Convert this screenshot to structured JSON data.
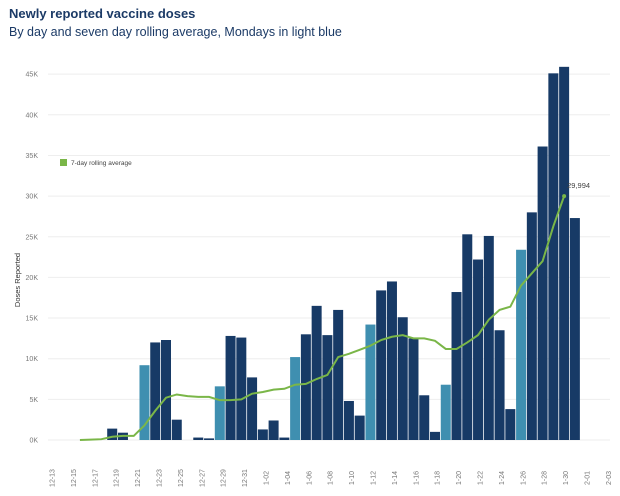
{
  "title": "Newly reported vaccine doses",
  "subtitle": "By day and seven day rolling average, Mondays in light blue",
  "chart_data": {
    "type": "bar",
    "ylabel": "Doses Reported",
    "ylim": [
      0,
      47000
    ],
    "yticks": [
      0,
      5000,
      10000,
      15000,
      20000,
      25000,
      30000,
      35000,
      40000,
      45000
    ],
    "ytick_labels": [
      "0K",
      "5K",
      "10K",
      "15K",
      "20K",
      "25K",
      "30K",
      "35K",
      "40K",
      "45K"
    ],
    "xtick_labels": [
      "12-13",
      "12-15",
      "12-17",
      "12-19",
      "12-21",
      "12-23",
      "12-25",
      "12-27",
      "12-29",
      "12-31",
      "1-02",
      "1-04",
      "1-06",
      "1-08",
      "1-10",
      "1-12",
      "1-14",
      "1-16",
      "1-18",
      "1-20",
      "1-22",
      "1-24",
      "1-26",
      "1-28",
      "1-30",
      "2-01",
      "2-03"
    ],
    "grid": true,
    "legend": {
      "label": "7-day rolling average",
      "placement": "top-left"
    },
    "colors": {
      "weekday": "#173a66",
      "monday": "#3f8fb0",
      "rolling_average": "#7ab648"
    },
    "categories": [
      "12-13",
      "12-14",
      "12-15",
      "12-16",
      "12-17",
      "12-18",
      "12-19",
      "12-20",
      "12-21",
      "12-22",
      "12-23",
      "12-24",
      "12-25",
      "12-26",
      "12-27",
      "12-28",
      "12-29",
      "12-30",
      "12-31",
      "1-01",
      "1-02",
      "1-03",
      "1-04",
      "1-05",
      "1-06",
      "1-07",
      "1-08",
      "1-09",
      "1-10",
      "1-11",
      "1-12",
      "1-13",
      "1-14",
      "1-15",
      "1-16",
      "1-17",
      "1-18",
      "1-19",
      "1-20",
      "1-21",
      "1-22",
      "1-23",
      "1-24",
      "1-25",
      "1-26",
      "1-27",
      "1-28",
      "1-29",
      "1-30",
      "1-31",
      "2-01",
      "2-02",
      "2-03"
    ],
    "series": [
      {
        "type": "bar",
        "values": [
          0,
          0,
          0,
          0,
          0,
          1400,
          900,
          0,
          9200,
          12000,
          12300,
          2500,
          0,
          300,
          200,
          6600,
          12800,
          12600,
          7700,
          1300,
          2400,
          300,
          10200,
          13000,
          16500,
          12900,
          16000,
          4800,
          3000,
          14200,
          18400,
          19500,
          15100,
          12500,
          5500,
          1000,
          6800,
          18200,
          25300,
          22200,
          25100,
          13500,
          3800,
          23400,
          28000,
          36100,
          45100,
          45900,
          27300,
          null,
          null,
          null,
          null
        ],
        "monday": [
          false,
          false,
          false,
          false,
          false,
          false,
          false,
          false,
          true,
          false,
          false,
          false,
          false,
          false,
          false,
          true,
          false,
          false,
          false,
          false,
          false,
          false,
          true,
          false,
          false,
          false,
          false,
          false,
          false,
          true,
          false,
          false,
          false,
          false,
          false,
          false,
          true,
          false,
          false,
          false,
          false,
          false,
          false,
          true,
          false,
          false,
          false,
          false,
          false,
          false,
          false,
          false,
          false
        ]
      },
      {
        "type": "line",
        "name": "7-day rolling average",
        "values": [
          null,
          null,
          0,
          50,
          100,
          400,
          500,
          500,
          1800,
          3600,
          5200,
          5600,
          5400,
          5300,
          5300,
          4900,
          4900,
          5000,
          5700,
          5900,
          6200,
          6300,
          6800,
          6900,
          7500,
          8000,
          10200,
          10600,
          11100,
          11600,
          12300,
          12700,
          12900,
          12500,
          12500,
          12200,
          11200,
          11200,
          12000,
          12900,
          14800,
          16000,
          16400,
          19000,
          20500,
          22000,
          26300,
          29994,
          null,
          null,
          null,
          null,
          null
        ]
      }
    ],
    "annotations": [
      {
        "category": "1-29",
        "text": "29,994"
      }
    ]
  }
}
